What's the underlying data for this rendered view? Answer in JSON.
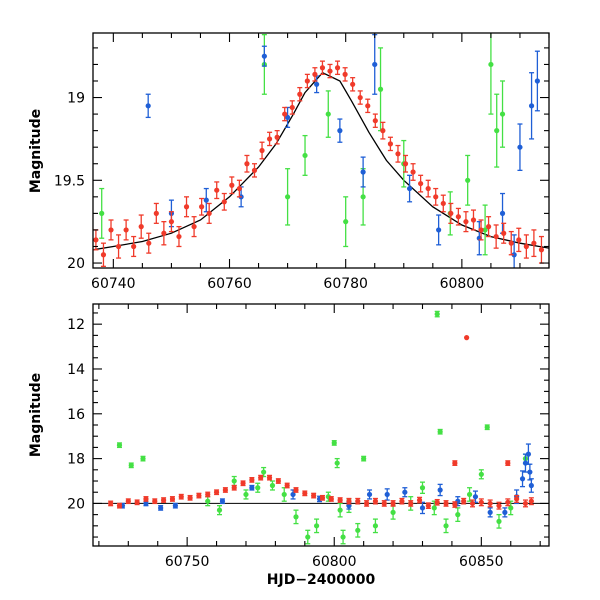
{
  "chart_data": [
    {
      "type": "scatter",
      "ylabel": "Magnitude",
      "xlabel": "",
      "xlim": [
        60736.5,
        60815
      ],
      "ylim": [
        20.03,
        18.61
      ],
      "y_inverted": true,
      "xticks": [
        60740,
        60760,
        60780,
        60800
      ],
      "yticks": [
        19,
        19.5,
        20
      ],
      "colors": {
        "blue": "#1f5fd6",
        "green": "#44e044",
        "red": "#f03a2a",
        "model": "#000000"
      },
      "model_curve": {
        "x": [
          60736.5,
          60740,
          60745,
          60750,
          60755,
          60760,
          60765,
          60768,
          60771,
          60773,
          60776,
          60779,
          60781,
          60784,
          60787,
          60790,
          60795,
          60800,
          60805,
          60810,
          60815
        ],
        "y": [
          19.92,
          19.9,
          19.87,
          19.82,
          19.74,
          19.6,
          19.42,
          19.28,
          19.1,
          18.97,
          18.85,
          18.9,
          19.02,
          19.21,
          19.38,
          19.5,
          19.66,
          19.77,
          19.84,
          19.88,
          19.91
        ]
      },
      "series": [
        {
          "color": "blue",
          "x": [
            60746,
            60750,
            60756,
            60762,
            60766,
            60770,
            60775,
            60779,
            60783,
            60785,
            60791,
            60796,
            60803,
            60807,
            60809,
            60810,
            60812,
            60813
          ],
          "y": [
            19.05,
            19.7,
            19.62,
            19.6,
            18.75,
            19.12,
            18.92,
            19.2,
            19.45,
            18.8,
            19.55,
            19.8,
            19.85,
            19.7,
            19.95,
            19.3,
            19.05,
            18.9
          ],
          "err": [
            0.07,
            0.08,
            0.07,
            0.06,
            0.06,
            0.06,
            0.05,
            0.07,
            0.09,
            0.18,
            0.08,
            0.09,
            0.1,
            0.12,
            0.12,
            0.14,
            0.2,
            0.18
          ]
        },
        {
          "color": "green",
          "x": [
            60738,
            60766,
            60770,
            60773,
            60777,
            60780,
            60783,
            60786,
            60790,
            60798,
            60801,
            60804,
            60805,
            60806,
            60807
          ],
          "y": [
            19.7,
            18.8,
            19.6,
            19.35,
            19.1,
            19.75,
            19.6,
            18.95,
            19.4,
            19.7,
            19.5,
            19.8,
            18.8,
            19.2,
            19.1
          ],
          "err": [
            0.15,
            0.18,
            0.17,
            0.12,
            0.14,
            0.15,
            0.17,
            0.25,
            0.14,
            0.13,
            0.15,
            0.15,
            0.3,
            0.22,
            0.2
          ]
        },
        {
          "color": "red",
          "x": [
            60737.0,
            60738.3,
            60739.6,
            60740.9,
            60742.2,
            60743.5,
            60744.8,
            60746.1,
            60747.4,
            60748.7,
            60750.0,
            60751.3,
            60752.6,
            60753.9,
            60755.2,
            60756.5,
            60757.8,
            60759.1,
            60760.4,
            60761.7,
            60763.0,
            60764.3,
            60765.6,
            60766.9,
            60768.2,
            60769.5,
            60770.8,
            60772.1,
            60773.4,
            60774.7,
            60776.0,
            60777.3,
            60778.6,
            60779.9,
            60781.2,
            60782.5,
            60783.8,
            60785.1,
            60786.4,
            60787.7,
            60789.0,
            60790.3,
            60791.6,
            60792.9,
            60794.2,
            60795.5,
            60796.8,
            60798.1,
            60799.4,
            60800.7,
            60802.0,
            60803.3,
            60804.6,
            60805.9,
            60807.2,
            60808.5,
            60809.8,
            60811.1,
            60812.4,
            60813.7
          ],
          "y": [
            19.86,
            19.95,
            19.8,
            19.9,
            19.8,
            19.9,
            19.78,
            19.88,
            19.7,
            19.82,
            19.75,
            19.84,
            19.66,
            19.78,
            19.66,
            19.7,
            19.56,
            19.63,
            19.53,
            19.55,
            19.4,
            19.44,
            19.32,
            19.25,
            19.24,
            19.1,
            19.06,
            18.98,
            18.9,
            18.86,
            18.82,
            18.84,
            18.82,
            18.86,
            18.92,
            19.0,
            19.05,
            19.14,
            19.2,
            19.28,
            19.34,
            19.4,
            19.45,
            19.52,
            19.55,
            19.6,
            19.64,
            19.7,
            19.72,
            19.75,
            19.74,
            19.8,
            19.78,
            19.84,
            19.82,
            19.88,
            19.86,
            19.9,
            19.88,
            19.92
          ],
          "err": [
            0.06,
            0.07,
            0.06,
            0.07,
            0.06,
            0.06,
            0.07,
            0.06,
            0.06,
            0.07,
            0.06,
            0.06,
            0.06,
            0.06,
            0.05,
            0.06,
            0.05,
            0.05,
            0.05,
            0.05,
            0.05,
            0.04,
            0.05,
            0.04,
            0.04,
            0.04,
            0.04,
            0.04,
            0.04,
            0.04,
            0.04,
            0.04,
            0.04,
            0.04,
            0.04,
            0.04,
            0.04,
            0.04,
            0.05,
            0.04,
            0.05,
            0.05,
            0.05,
            0.05,
            0.05,
            0.05,
            0.05,
            0.06,
            0.05,
            0.06,
            0.06,
            0.06,
            0.06,
            0.07,
            0.06,
            0.07,
            0.07,
            0.07,
            0.08,
            0.08
          ]
        }
      ]
    },
    {
      "type": "scatter",
      "ylabel": "Magnitude",
      "xlabel": "HJD−2400000",
      "xlim": [
        60718,
        60873
      ],
      "ylim": [
        21.9,
        11.1
      ],
      "y_inverted": true,
      "xticks": [
        60750,
        60800,
        60850
      ],
      "yticks": [
        12,
        14,
        16,
        18,
        20
      ],
      "colors": {
        "blue": "#1f5fd6",
        "green": "#44e044",
        "red": "#f03a2a",
        "model": "#000000"
      },
      "baseline": {
        "y": 20.0
      },
      "series": [
        {
          "color": "blue",
          "x": [
            60728,
            60736,
            60741,
            60746,
            60762,
            60772,
            60786,
            60795,
            60805,
            60812,
            60818,
            60824,
            60830,
            60836,
            60842,
            60848,
            60853,
            60858,
            60862,
            60864,
            60865,
            60866,
            60866.5,
            60867
          ],
          "y": [
            20.1,
            20.0,
            20.2,
            20.1,
            19.9,
            19.3,
            19.6,
            19.8,
            20.1,
            19.6,
            19.6,
            19.5,
            20.2,
            19.4,
            19.9,
            19.7,
            20.4,
            20.4,
            19.7,
            18.9,
            18.2,
            17.8,
            18.6,
            19.2
          ],
          "err": [
            0.1,
            0.1,
            0.1,
            0.1,
            0.1,
            0.1,
            0.2,
            0.12,
            0.15,
            0.2,
            0.25,
            0.2,
            0.25,
            0.25,
            0.2,
            0.25,
            0.2,
            0.2,
            0.3,
            0.35,
            0.4,
            0.45,
            0.35,
            0.3
          ]
        },
        {
          "color": "green",
          "x": [
            60727,
            60731,
            60735,
            60757,
            60761,
            60766,
            60770,
            60774,
            60776,
            60779,
            60783,
            60787,
            60791,
            60794,
            60798,
            60800,
            60801,
            60802,
            60803,
            60805,
            60808,
            60810,
            60814,
            60820,
            60826,
            60830,
            60834,
            60835,
            60836,
            60838,
            60842,
            60846,
            60850,
            60852,
            60856,
            60860,
            60865
          ],
          "y": [
            17.4,
            18.3,
            18.0,
            19.9,
            20.3,
            19.0,
            19.6,
            19.3,
            18.6,
            19.2,
            19.6,
            20.6,
            21.5,
            21.0,
            19.7,
            17.3,
            18.2,
            20.3,
            21.5,
            20.1,
            21.2,
            18.0,
            21.0,
            20.4,
            20.0,
            19.3,
            20.2,
            11.55,
            16.8,
            21.0,
            20.5,
            19.6,
            18.7,
            16.6,
            20.8,
            20.2,
            18.0
          ],
          "err": [
            0.1,
            0.1,
            0.1,
            0.2,
            0.2,
            0.2,
            0.2,
            0.2,
            0.2,
            0.2,
            0.3,
            0.3,
            0.3,
            0.3,
            0.2,
            0.1,
            0.2,
            0.3,
            0.3,
            0.3,
            0.3,
            0.1,
            0.3,
            0.3,
            0.3,
            0.25,
            0.3,
            0.12,
            0.1,
            0.3,
            0.3,
            0.3,
            0.2,
            0.1,
            0.3,
            0.3,
            0.2
          ]
        },
        {
          "color": "red",
          "x": [
            60724,
            60727,
            60730,
            60733,
            60736,
            60739,
            60742,
            60745,
            60748,
            60751,
            60754,
            60757,
            60760,
            60763,
            60766,
            60769,
            60772,
            60775,
            60778,
            60781,
            60784,
            60787,
            60790,
            60793,
            60796,
            60799,
            60802,
            60805,
            60808,
            60811,
            60814,
            60817,
            60820,
            60823,
            60826,
            60829,
            60832,
            60835,
            60838,
            60841,
            60844,
            60847,
            60850,
            60853,
            60856,
            60859,
            60862,
            60865,
            60867
          ],
          "y": [
            20.0,
            20.1,
            19.9,
            19.95,
            19.8,
            19.9,
            19.85,
            19.8,
            19.7,
            19.75,
            19.65,
            19.6,
            19.5,
            19.4,
            19.3,
            19.1,
            18.95,
            18.85,
            18.85,
            19.0,
            19.2,
            19.4,
            19.55,
            19.65,
            19.75,
            19.8,
            19.85,
            19.9,
            19.9,
            20.0,
            19.9,
            20.0,
            20.0,
            19.9,
            20.0,
            19.85,
            20.1,
            19.95,
            20.0,
            20.05,
            19.9,
            20.0,
            19.95,
            20.0,
            20.1,
            19.95,
            19.8,
            20.0,
            19.9
          ],
          "err": [
            0.1,
            0.1,
            0.1,
            0.1,
            0.1,
            0.1,
            0.1,
            0.1,
            0.1,
            0.1,
            0.1,
            0.1,
            0.1,
            0.1,
            0.1,
            0.1,
            0.1,
            0.1,
            0.1,
            0.1,
            0.1,
            0.1,
            0.1,
            0.1,
            0.1,
            0.1,
            0.1,
            0.12,
            0.12,
            0.12,
            0.12,
            0.12,
            0.12,
            0.12,
            0.12,
            0.12,
            0.12,
            0.12,
            0.12,
            0.12,
            0.12,
            0.15,
            0.15,
            0.15,
            0.15,
            0.15,
            0.15,
            0.15,
            0.15
          ]
        },
        {
          "color": "red",
          "x": [
            60845,
            60841,
            60859
          ],
          "y": [
            12.6,
            18.2,
            18.2
          ],
          "err": [
            0.0,
            0.1,
            0.1
          ]
        }
      ]
    }
  ]
}
